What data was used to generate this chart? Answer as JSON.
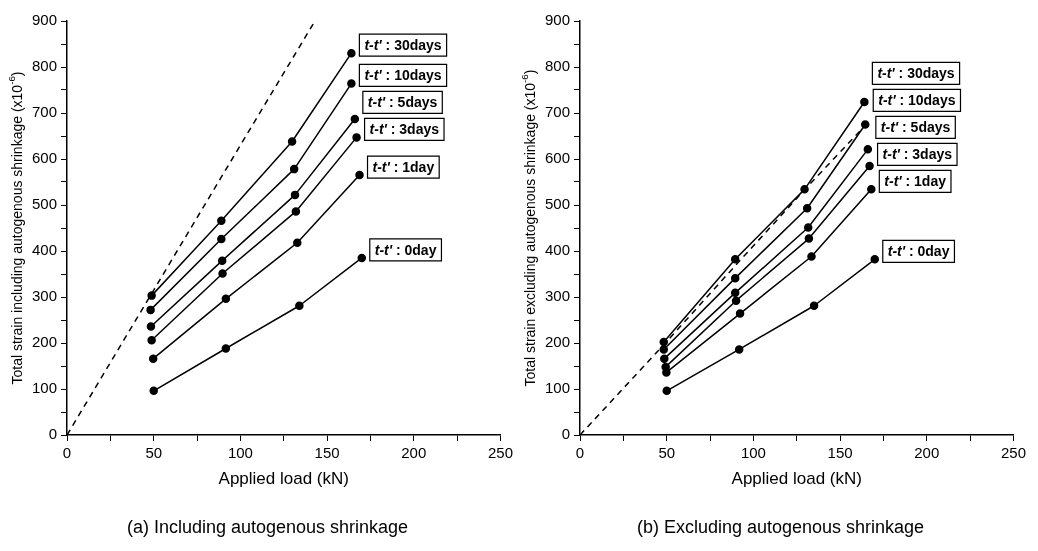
{
  "chart_data": [
    {
      "type": "line",
      "title": "(a) Including autogenous shrinkage",
      "xlabel": "Applied load (kN)",
      "ylabel": "Total strain including autogenous shrinkage (x10$^{-6}$)",
      "xlim": [
        0,
        250
      ],
      "xticks": [
        0,
        {
          "value": 25,
          "label": null
        },
        50,
        {
          "value": 75,
          "label": null
        },
        100,
        {
          "value": 125,
          "label": null
        },
        150,
        {
          "value": 175,
          "label": null
        },
        200,
        {
          "value": 225,
          "label": null
        },
        250
      ],
      "ylim": [
        0,
        900
      ],
      "yticks": [
        0,
        {
          "value": 50,
          "label": null
        },
        100,
        {
          "value": 150,
          "label": null
        },
        200,
        {
          "value": 250,
          "label": null
        },
        300,
        {
          "value": 350,
          "label": null
        },
        400,
        {
          "value": 450,
          "label": null
        },
        500,
        {
          "value": 550,
          "label": null
        },
        600,
        {
          "value": 650,
          "label": null
        },
        700,
        {
          "value": 750,
          "label": null
        },
        800,
        {
          "value": 850,
          "label": null
        },
        900
      ],
      "grid": false,
      "legend": false,
      "marker": "circle",
      "line_style": "solid",
      "series": [
        {
          "name": "t-t' : 30days",
          "color": "#000000",
          "x": [
            48.8,
            89,
            129.8,
            164
          ],
          "values": [
            303,
            466,
            638,
            830
          ]
        },
        {
          "name": "t-t' : 10days",
          "color": "#000000",
          "x": [
            48.2,
            89,
            131,
            164
          ],
          "values": [
            272,
            426,
            578,
            764
          ]
        },
        {
          "name": "t-t' : 5days",
          "color": "#000000",
          "x": [
            48.4,
            89.5,
            131.5,
            166
          ],
          "values": [
            236,
            379,
            522,
            687
          ]
        },
        {
          "name": "t-t' : 3days",
          "color": "#000000",
          "x": [
            48.8,
            89.7,
            132,
            167
          ],
          "values": [
            206,
            351,
            486,
            647
          ]
        },
        {
          "name": "t-t' : 1day",
          "color": "#000000",
          "x": [
            49.7,
            91.6,
            132.8,
            168.7
          ],
          "values": [
            166,
            296,
            418,
            565
          ]
        },
        {
          "name": "t-t' : 0day",
          "color": "#000000",
          "x": [
            50,
            91.6,
            134,
            170
          ],
          "values": [
            96,
            188,
            281,
            385
          ]
        },
        {
          "color": "#000000",
          "line_style": "dashed",
          "marker": "none",
          "x": [
            0,
            50,
            100,
            143
          ],
          "values": [
            0,
            315,
            630,
            900
          ]
        }
      ]
    },
    {
      "type": "line",
      "title": "(b) Excluding autogenous shrinkage",
      "xlabel": "Applied load (kN)",
      "ylabel": "Total strain excluding autogenous shrinkage (x10$^{-6}$)",
      "xlim": [
        0,
        250
      ],
      "xticks": [
        0,
        {
          "value": 25,
          "label": null
        },
        50,
        {
          "value": 75,
          "label": null
        },
        100,
        {
          "value": 125,
          "label": null
        },
        150,
        {
          "value": 175,
          "label": null
        },
        200,
        {
          "value": 225,
          "label": null
        },
        250
      ],
      "ylim": [
        0,
        900
      ],
      "yticks": [
        0,
        {
          "value": 50,
          "label": null
        },
        100,
        {
          "value": 150,
          "label": null
        },
        200,
        {
          "value": 250,
          "label": null
        },
        300,
        {
          "value": 350,
          "label": null
        },
        400,
        {
          "value": 450,
          "label": null
        },
        500,
        {
          "value": 550,
          "label": null
        },
        600,
        {
          "value": 650,
          "label": null
        },
        700,
        {
          "value": 750,
          "label": null
        },
        800,
        {
          "value": 850,
          "label": null
        },
        900
      ],
      "grid": false,
      "legend": false,
      "marker": "circle",
      "line_style": "solid",
      "series": [
        {
          "name": "t-t' : 30days",
          "color": "#000000",
          "x": [
            48.3,
            89.5,
            129.5,
            164
          ],
          "values": [
            202,
            382,
            534,
            724
          ]
        },
        {
          "name": "t-t' : 10days",
          "color": "#000000",
          "x": [
            48.3,
            89.5,
            131,
            164.5
          ],
          "values": [
            186,
            341,
            493,
            675
          ]
        },
        {
          "name": "t-t' : 5days",
          "color": "#000000",
          "x": [
            48.6,
            89.5,
            131.6,
            166
          ],
          "values": [
            166,
            309,
            451,
            621
          ]
        },
        {
          "name": "t-t' : 3days",
          "color": "#000000",
          "x": [
            49.4,
            90,
            132,
            167
          ],
          "values": [
            148,
            292,
            427,
            585
          ]
        },
        {
          "name": "t-t' : 1day",
          "color": "#000000",
          "x": [
            49.8,
            92.3,
            133.5,
            168
          ],
          "values": [
            136,
            264,
            388,
            534
          ]
        },
        {
          "name": "t-t' : 0day",
          "color": "#000000",
          "x": [
            50,
            91.8,
            135,
            170
          ],
          "values": [
            96,
            186,
            281,
            382
          ]
        },
        {
          "color": "#000000",
          "line_style": "dashed",
          "marker": "none",
          "x": [
            0,
            48,
            90,
            130,
            165
          ],
          "values": [
            0,
            195,
            370,
            535,
            675
          ]
        }
      ]
    }
  ]
}
